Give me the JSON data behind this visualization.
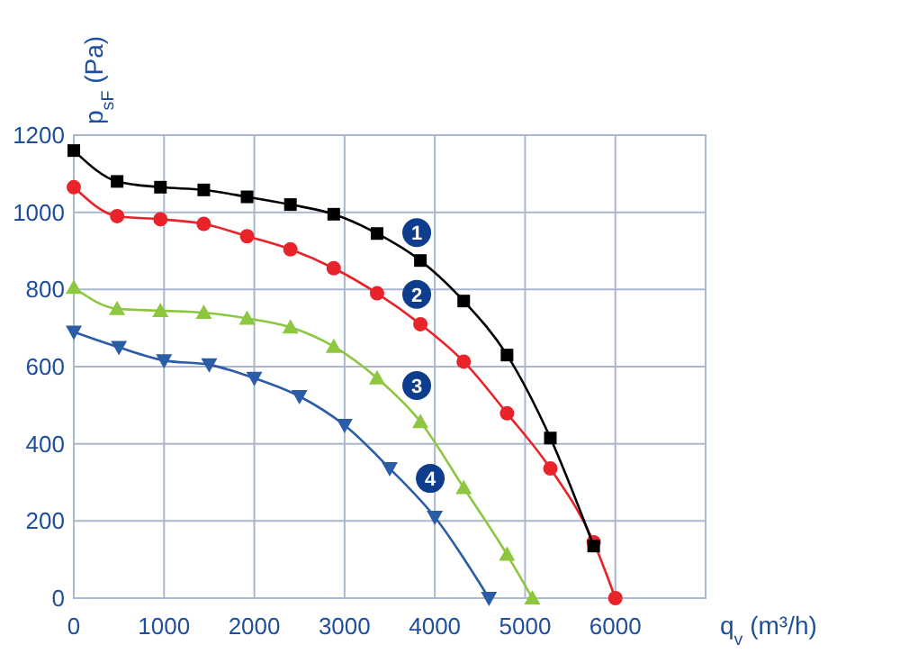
{
  "chart_data": {
    "type": "line",
    "xlabel": "q$_{v}$ (m³/h)",
    "ylabel": "p$_{sF}$ (Pa)",
    "xlim": [
      0,
      7000
    ],
    "xticks": [
      0,
      1000,
      2000,
      3000,
      4000,
      5000,
      6000,
      {
        "value": 7000,
        "label": null
      }
    ],
    "ylim": [
      0,
      1200
    ],
    "yticks": [
      0,
      200,
      400,
      600,
      800,
      1000,
      1200
    ],
    "grid": true,
    "series": [
      {
        "name": "1",
        "color": "#000000",
        "marker": "square",
        "x": [
          0,
          480,
          960,
          1440,
          1920,
          2400,
          2880,
          3360,
          3840,
          4320,
          4800,
          5280,
          5760
        ],
        "values": [
          1160,
          1080,
          1065,
          1058,
          1040,
          1020,
          995,
          945,
          875,
          770,
          630,
          415,
          135
        ]
      },
      {
        "name": "2",
        "color": "#e8232a",
        "marker": "circle",
        "x": [
          0,
          480,
          960,
          1440,
          1920,
          2400,
          2880,
          3360,
          3840,
          4320,
          4800,
          5280,
          5760,
          6000
        ],
        "values": [
          1065,
          990,
          982,
          970,
          938,
          904,
          855,
          790,
          710,
          613,
          479,
          336,
          145,
          0
        ]
      },
      {
        "name": "3",
        "color": "#8dc63f",
        "marker": "triangle",
        "x": [
          0,
          480,
          960,
          1440,
          1920,
          2400,
          2880,
          3360,
          3840,
          4320,
          4800,
          5080
        ],
        "values": [
          805,
          750,
          745,
          740,
          725,
          702,
          652,
          570,
          457,
          286,
          113,
          0
        ]
      },
      {
        "name": "4",
        "color": "#2b5ca8",
        "marker": "triangle-down",
        "x": [
          0,
          500,
          1000,
          1500,
          2000,
          2500,
          3000,
          3500,
          4000,
          4600
        ],
        "values": [
          690,
          650,
          616,
          605,
          570,
          523,
          448,
          336,
          210,
          0
        ]
      }
    ]
  }
}
